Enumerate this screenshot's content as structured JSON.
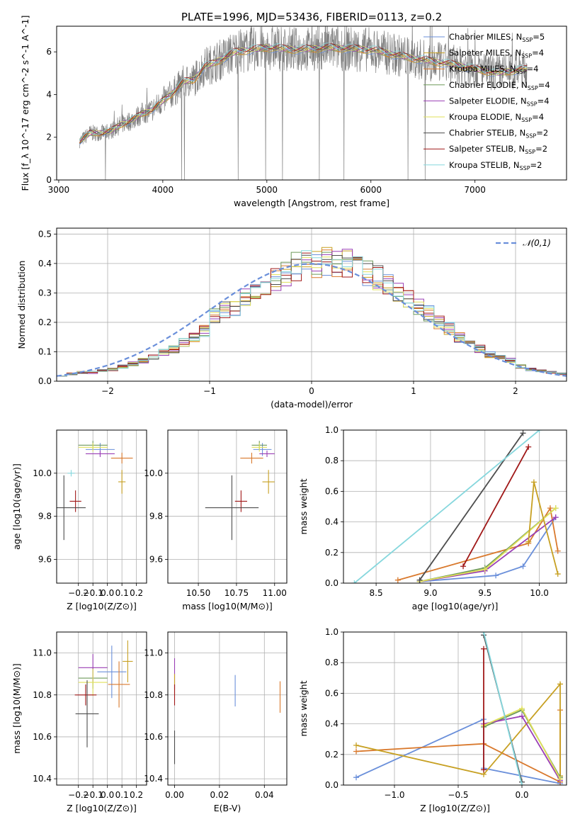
{
  "figure": {
    "title": "PLATE=1996, MJD=53436, FIBERID=0113, z=0.2"
  },
  "legend_names": [
    "Chabrier MILES",
    "Salpeter MILES",
    "Kroupa MILES",
    "Chabrier ELODIE",
    "Salpeter ELODIE",
    "Kroupa ELODIE",
    "Chabrier STELIB",
    "Salpeter STELIB",
    "Kroupa STELIB"
  ],
  "legend_nssp": [
    5,
    4,
    4,
    4,
    4,
    4,
    2,
    2,
    2
  ],
  "colors": {
    "chabrier_miles": "#6a8fda",
    "salpeter_miles": "#c7a022",
    "kroupa_miles": "#d9792d",
    "chabrier_elodie": "#6e9a5a",
    "salpeter_elodie": "#9a3fb5",
    "kroupa_elodie": "#e0e05a",
    "chabrier_stelib": "#4d4d4d",
    "salpeter_stelib": "#a01818",
    "kroupa_stelib": "#86d7dd",
    "data_spectrum": "#808080",
    "gauss": "#6a8fda",
    "grid": "#b0b0b0"
  },
  "chart_data": [
    {
      "id": "spectrum",
      "type": "line",
      "title": "PLATE=1996, MJD=53436, FIBERID=0113, z=0.2",
      "xlabel": "wavelength [Angstrom, rest frame]",
      "ylabel": "Flux [f_λ 10^-17 erg cm^-2 s^-1 A^-1]",
      "xlim": [
        2980,
        7880
      ],
      "ylim": [
        0,
        7.2
      ],
      "xticks": [
        3000,
        4000,
        5000,
        6000,
        7000
      ],
      "yticks": [
        0,
        2,
        4,
        6
      ],
      "grid": false,
      "legend_position": "right",
      "model_curve": {
        "x": [
          3200,
          3300,
          3400,
          3500,
          3600,
          3700,
          3800,
          3900,
          4000,
          4100,
          4200,
          4300,
          4400,
          4500,
          4700,
          5000,
          5300,
          5600,
          6000,
          6400,
          6800,
          7200,
          7500
        ],
        "y": [
          1.8,
          2.2,
          2.2,
          2.3,
          2.6,
          2.8,
          3.1,
          3.3,
          3.7,
          4.1,
          4.6,
          4.7,
          5.3,
          5.5,
          6.0,
          6.2,
          6.1,
          6.2,
          6.1,
          5.7,
          5.4,
          5.0,
          5.2
        ]
      }
    },
    {
      "id": "residuals",
      "type": "bar",
      "xlabel": "(data-model)/error",
      "ylabel": "Normed distribution",
      "xlim": [
        -2.5,
        2.5
      ],
      "ylim": [
        0,
        0.52
      ],
      "xticks": [
        -2,
        -1,
        0,
        1,
        2
      ],
      "yticks": [
        0.0,
        0.1,
        0.2,
        0.3,
        0.4,
        0.5
      ],
      "grid": true,
      "legend_position": "top-right",
      "gauss_label": "𝒩(0,1)",
      "bins": {
        "edges_start": -2.5,
        "bin_width": 0.1,
        "values": [
          0.02,
          0.025,
          0.03,
          0.03,
          0.035,
          0.04,
          0.05,
          0.06,
          0.07,
          0.08,
          0.1,
          0.11,
          0.13,
          0.15,
          0.17,
          0.22,
          0.24,
          0.25,
          0.28,
          0.31,
          0.33,
          0.35,
          0.37,
          0.39,
          0.4,
          0.4,
          0.41,
          0.4,
          0.4,
          0.39,
          0.37,
          0.35,
          0.33,
          0.3,
          0.28,
          0.25,
          0.23,
          0.2,
          0.18,
          0.15,
          0.13,
          0.11,
          0.09,
          0.08,
          0.07,
          0.05,
          0.04,
          0.035,
          0.03,
          0.025
        ]
      }
    },
    {
      "id": "age_vs_Z",
      "type": "scatter",
      "xlabel": "Z [log10(Z/Z⊙)]",
      "ylabel": "age [log10(age/yr)]",
      "xlim": [
        -0.35,
        0.27
      ],
      "ylim": [
        9.49,
        10.2
      ],
      "xticks": [
        -0.2,
        -0.1,
        0.0,
        0.1,
        0.2
      ],
      "yticks": [
        9.6,
        9.8,
        10.0
      ],
      "grid": true,
      "points": [
        {
          "x": -0.05,
          "y": 10.11,
          "xe": 0.2,
          "ye": 0.06,
          "c": "chabrier_miles"
        },
        {
          "x": 0.1,
          "y": 10.07,
          "xe": 0.15,
          "ye": 0.05,
          "c": "kroupa_miles"
        },
        {
          "x": -0.1,
          "y": 10.13,
          "xe": 0.2,
          "ye": 0.04,
          "c": "chabrier_elodie"
        },
        {
          "x": -0.05,
          "y": 10.09,
          "xe": 0.2,
          "ye": 0.03,
          "c": "salpeter_elodie"
        },
        {
          "x": -0.1,
          "y": 10.12,
          "xe": 0.2,
          "ye": 0.04,
          "c": "kroupa_elodie"
        },
        {
          "x": 0.1,
          "y": 9.96,
          "xe": 0.05,
          "ye": 0.11,
          "c": "salpeter_miles"
        },
        {
          "x": -0.25,
          "y": 10.0,
          "xe": 0.05,
          "ye": 0.03,
          "c": "kroupa_stelib"
        },
        {
          "x": -0.22,
          "y": 9.87,
          "xe": 0.08,
          "ye": 0.1,
          "c": "salpeter_stelib"
        },
        {
          "x": -0.3,
          "y": 9.84,
          "xe": 0.3,
          "ye": 0.3,
          "c": "chabrier_stelib"
        }
      ]
    },
    {
      "id": "age_vs_mass",
      "type": "scatter",
      "xlabel": "mass [log10(M/M⊙)]",
      "ylabel": "",
      "xlim": [
        10.3,
        11.08
      ],
      "ylim": [
        9.49,
        10.2
      ],
      "xticks": [
        10.5,
        10.75,
        11.0
      ],
      "yticks": [
        9.6,
        9.8,
        10.0
      ],
      "grid": true,
      "points": [
        {
          "x": 10.92,
          "y": 10.11,
          "xe": 0.12,
          "ye": 0.06,
          "c": "chabrier_miles"
        },
        {
          "x": 10.85,
          "y": 10.07,
          "xe": 0.15,
          "ye": 0.05,
          "c": "kroupa_miles"
        },
        {
          "x": 10.9,
          "y": 10.13,
          "xe": 0.1,
          "ye": 0.04,
          "c": "chabrier_elodie"
        },
        {
          "x": 10.95,
          "y": 10.09,
          "xe": 0.1,
          "ye": 0.03,
          "c": "salpeter_elodie"
        },
        {
          "x": 10.9,
          "y": 10.12,
          "xe": 0.1,
          "ye": 0.04,
          "c": "kroupa_elodie"
        },
        {
          "x": 10.96,
          "y": 9.96,
          "xe": 0.08,
          "ye": 0.11,
          "c": "salpeter_miles"
        },
        {
          "x": 10.78,
          "y": 9.87,
          "xe": 0.08,
          "ye": 0.1,
          "c": "salpeter_stelib"
        },
        {
          "x": 10.72,
          "y": 9.84,
          "xe": 0.35,
          "ye": 0.3,
          "c": "chabrier_stelib"
        }
      ]
    },
    {
      "id": "mass_weight_vs_age",
      "type": "line",
      "xlabel": "age [log10(age/yr)]",
      "ylabel": "mass weight",
      "xlim": [
        8.2,
        10.25
      ],
      "ylim": [
        0,
        1.0
      ],
      "xticks": [
        8.5,
        9.0,
        9.5,
        10.0
      ],
      "yticks": [
        0.0,
        0.2,
        0.4,
        0.6,
        0.8,
        1.0
      ],
      "grid": true,
      "series": [
        {
          "c": "chabrier_miles",
          "x": [
            8.9,
            9.6,
            9.85,
            10.15
          ],
          "y": [
            0.01,
            0.05,
            0.11,
            0.43
          ]
        },
        {
          "c": "kroupa_miles",
          "x": [
            8.7,
            9.9,
            10.1,
            10.17
          ],
          "y": [
            0.02,
            0.26,
            0.49,
            0.21
          ]
        },
        {
          "c": "chabrier_elodie",
          "x": [
            8.9,
            9.5,
            10.15
          ],
          "y": [
            0.01,
            0.1,
            0.49
          ]
        },
        {
          "c": "salpeter_elodie",
          "x": [
            8.9,
            9.5,
            10.15
          ],
          "y": [
            0.01,
            0.08,
            0.43
          ]
        },
        {
          "c": "kroupa_elodie",
          "x": [
            8.9,
            9.5,
            10.15
          ],
          "y": [
            0.01,
            0.09,
            0.49
          ]
        },
        {
          "c": "salpeter_miles",
          "x": [
            9.9,
            9.95,
            10.17
          ],
          "y": [
            0.27,
            0.66,
            0.06
          ]
        },
        {
          "c": "chabrier_stelib",
          "x": [
            8.9,
            9.85
          ],
          "y": [
            0.02,
            0.98
          ]
        },
        {
          "c": "salpeter_stelib",
          "x": [
            9.3,
            9.9
          ],
          "y": [
            0.11,
            0.89
          ]
        },
        {
          "c": "kroupa_stelib",
          "x": [
            8.3,
            10.0
          ],
          "y": [
            0.0,
            1.0
          ]
        }
      ]
    },
    {
      "id": "mass_vs_Z",
      "type": "scatter",
      "xlabel": "Z [log10(Z/Z⊙)]",
      "ylabel": "mass [log10(M/M⊙)]",
      "xlim": [
        -0.35,
        0.27
      ],
      "ylim": [
        10.37,
        11.1
      ],
      "xticks": [
        -0.2,
        -0.1,
        0.0,
        0.1,
        0.2
      ],
      "yticks": [
        10.4,
        10.6,
        10.8,
        11.0
      ],
      "grid": true,
      "points": [
        {
          "x": 0.03,
          "y": 10.91,
          "xe": 0.2,
          "ye": 0.25,
          "c": "chabrier_miles"
        },
        {
          "x": 0.08,
          "y": 10.85,
          "xe": 0.15,
          "ye": 0.22,
          "c": "kroupa_miles"
        },
        {
          "x": -0.1,
          "y": 10.88,
          "xe": 0.2,
          "ye": 0.1,
          "c": "chabrier_elodie"
        },
        {
          "x": -0.1,
          "y": 10.93,
          "xe": 0.2,
          "ye": 0.13,
          "c": "salpeter_elodie"
        },
        {
          "x": -0.1,
          "y": 10.86,
          "xe": 0.2,
          "ye": 0.13,
          "c": "kroupa_elodie"
        },
        {
          "x": 0.14,
          "y": 10.96,
          "xe": 0.07,
          "ye": 0.2,
          "c": "salpeter_miles"
        },
        {
          "x": -0.15,
          "y": 10.8,
          "xe": 0.15,
          "ye": 0.1,
          "c": "salpeter_stelib"
        },
        {
          "x": -0.14,
          "y": 10.71,
          "xe": 0.16,
          "ye": 0.32,
          "c": "chabrier_stelib"
        }
      ]
    },
    {
      "id": "mass_vs_ebv",
      "type": "scatter",
      "xlabel": "E(B-V)",
      "ylabel": "",
      "xlim": [
        -0.003,
        0.05
      ],
      "ylim": [
        10.37,
        11.1
      ],
      "xticks": [
        0.0,
        0.02,
        0.04
      ],
      "yticks": [
        10.4,
        10.6,
        10.8,
        11.0
      ],
      "grid": true,
      "points": [
        {
          "x": 0.027,
          "y": 10.82,
          "xe": 0,
          "ye": 0.15,
          "c": "chabrier_miles"
        },
        {
          "x": 0.047,
          "y": 10.79,
          "xe": 0,
          "ye": 0.15,
          "c": "kroupa_miles"
        },
        {
          "x": 0.0,
          "y": 10.9,
          "xe": 0,
          "ye": 0.15,
          "c": "salpeter_elodie"
        },
        {
          "x": 0.0,
          "y": 10.85,
          "xe": 0,
          "ye": 0.1,
          "c": "salpeter_miles"
        },
        {
          "x": 0.0,
          "y": 10.8,
          "xe": 0,
          "ye": 0.1,
          "c": "salpeter_stelib"
        },
        {
          "x": 0.0,
          "y": 10.55,
          "xe": 0,
          "ye": 0.16,
          "c": "chabrier_stelib"
        }
      ]
    },
    {
      "id": "mass_weight_vs_Z",
      "type": "line",
      "xlabel": "Z [log10(Z/Z⊙)]",
      "ylabel": "mass weight",
      "xlim": [
        -1.4,
        0.35
      ],
      "ylim": [
        0,
        1.0
      ],
      "xticks": [
        -1.0,
        -0.5,
        0.0
      ],
      "yticks": [
        0.0,
        0.2,
        0.4,
        0.6,
        0.8,
        1.0
      ],
      "grid": true,
      "series": [
        {
          "c": "chabrier_miles",
          "x": [
            -1.3,
            -0.3,
            -0.3,
            0.3
          ],
          "y": [
            0.05,
            0.43,
            0.11,
            0.01
          ]
        },
        {
          "c": "kroupa_miles",
          "x": [
            -1.3,
            -0.3,
            0.3,
            0.3
          ],
          "y": [
            0.22,
            0.27,
            0.02,
            0.49
          ]
        },
        {
          "c": "salpeter_miles",
          "x": [
            -1.3,
            -0.3,
            0.3,
            0.3
          ],
          "y": [
            0.26,
            0.07,
            0.66,
            0.06
          ]
        },
        {
          "c": "chabrier_elodie",
          "x": [
            -0.3,
            0.0,
            0.3
          ],
          "y": [
            0.38,
            0.49,
            0.05
          ]
        },
        {
          "c": "salpeter_elodie",
          "x": [
            -0.3,
            0.0,
            0.3
          ],
          "y": [
            0.4,
            0.45,
            0.03
          ]
        },
        {
          "c": "kroupa_elodie",
          "x": [
            -0.3,
            0.0,
            0.3
          ],
          "y": [
            0.39,
            0.5,
            0.04
          ]
        },
        {
          "c": "chabrier_stelib",
          "x": [
            -0.3,
            0.0
          ],
          "y": [
            0.98,
            0.02
          ]
        },
        {
          "c": "salpeter_stelib",
          "x": [
            -0.3,
            -0.3
          ],
          "y": [
            0.89,
            0.1
          ]
        },
        {
          "c": "kroupa_stelib",
          "x": [
            -0.3,
            0.0
          ],
          "y": [
            1.0,
            0.0
          ]
        }
      ]
    }
  ]
}
